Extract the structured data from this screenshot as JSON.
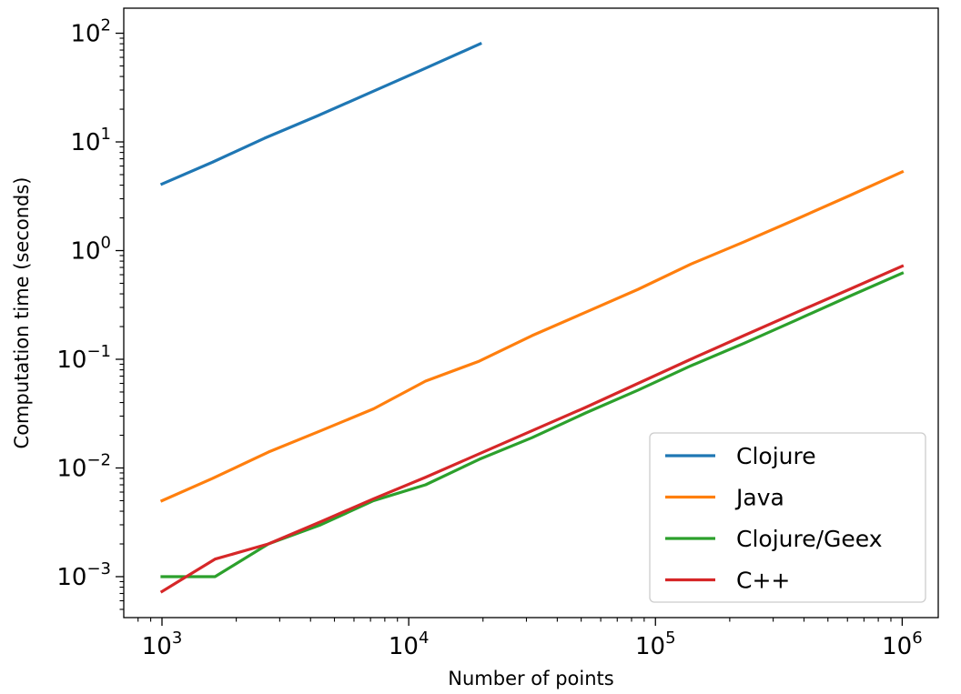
{
  "chart_data": {
    "type": "line",
    "xscale": "log",
    "yscale": "log",
    "xlabel": "Number of points",
    "ylabel": "Computation time (seconds)",
    "xlim": [
      700,
      1400000
    ],
    "ylim": [
      0.00042,
      170
    ],
    "grid": false,
    "legend_position": "lower-right",
    "x_ticks": [
      {
        "base": "10",
        "exp": "3",
        "value": 1000
      },
      {
        "base": "10",
        "exp": "4",
        "value": 10000
      },
      {
        "base": "10",
        "exp": "5",
        "value": 100000
      },
      {
        "base": "10",
        "exp": "6",
        "value": 1000000
      }
    ],
    "y_ticks": [
      {
        "base": "10",
        "exp": "−3",
        "value": 0.001
      },
      {
        "base": "10",
        "exp": "−2",
        "value": 0.01
      },
      {
        "base": "10",
        "exp": "−1",
        "value": 0.1
      },
      {
        "base": "10",
        "exp": "0",
        "value": 1
      },
      {
        "base": "10",
        "exp": "1",
        "value": 10
      },
      {
        "base": "10",
        "exp": "2",
        "value": 100
      }
    ],
    "series": [
      {
        "name": "Clojure",
        "color": "#1f77b4",
        "x": [
          1000,
          1600,
          2600,
          4300,
          7000,
          11300,
          19500
        ],
        "y": [
          4.1,
          6.5,
          10.8,
          17.5,
          28.5,
          46,
          80
        ]
      },
      {
        "name": "Java",
        "color": "#ff7f0e",
        "x": [
          1000,
          1600,
          2700,
          4400,
          7200,
          11700,
          19300,
          31600,
          52000,
          85000,
          139000,
          228000,
          373000,
          611000,
          1000000
        ],
        "y": [
          0.005,
          0.008,
          0.014,
          0.022,
          0.035,
          0.063,
          0.096,
          0.165,
          0.27,
          0.44,
          0.75,
          1.2,
          1.95,
          3.2,
          5.3
        ]
      },
      {
        "name": "Clojure/Geex",
        "color": "#2ca02c",
        "x": [
          1000,
          1640,
          2700,
          4400,
          7200,
          11700,
          19300,
          31600,
          52000,
          85000,
          139000,
          228000,
          373000,
          611000,
          1000000
        ],
        "y": [
          0.001,
          0.001,
          0.002,
          0.003,
          0.005,
          0.007,
          0.012,
          0.019,
          0.032,
          0.052,
          0.087,
          0.14,
          0.23,
          0.38,
          0.62
        ]
      },
      {
        "name": "C++",
        "color": "#d62728",
        "x": [
          1000,
          1640,
          2700,
          4400,
          7200,
          11700,
          19300,
          31600,
          52000,
          85000,
          139000,
          228000,
          373000,
          611000,
          1000000
        ],
        "y": [
          0.00073,
          0.00145,
          0.002,
          0.0032,
          0.0052,
          0.0082,
          0.0135,
          0.022,
          0.036,
          0.06,
          0.1,
          0.165,
          0.27,
          0.44,
          0.72
        ]
      }
    ]
  }
}
